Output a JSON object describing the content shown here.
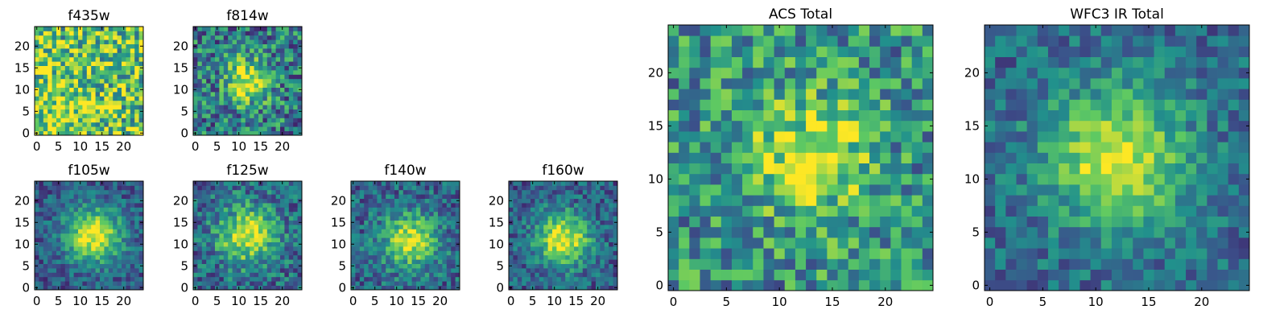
{
  "colormap": [
    "#440154",
    "#3b528b",
    "#21918c",
    "#5ec962",
    "#fde725"
  ],
  "chart_data": [
    {
      "type": "heatmap",
      "title": "f435w",
      "grid_size": 25,
      "xlim": [
        0,
        24
      ],
      "ylim": [
        0,
        24
      ],
      "xticks": [
        0,
        5,
        10,
        15,
        20
      ],
      "yticks": [
        0,
        5,
        10,
        15,
        20
      ],
      "intensity": {
        "peak_x": 6,
        "peak_y": 5,
        "peak": 0.15,
        "sigma": 5,
        "base": 0.72,
        "noise": 0.38
      }
    },
    {
      "type": "heatmap",
      "title": "f814w",
      "grid_size": 25,
      "xlim": [
        0,
        24
      ],
      "ylim": [
        0,
        24
      ],
      "xticks": [
        0,
        5,
        10,
        15,
        20
      ],
      "yticks": [
        0,
        5,
        10,
        15,
        20
      ],
      "intensity": {
        "peak_x": 12,
        "peak_y": 12,
        "peak": 0.55,
        "sigma": 3.5,
        "base": 0.42,
        "noise": 0.32
      }
    },
    {
      "type": "heatmap",
      "title": "f105w",
      "grid_size": 25,
      "xlim": [
        0,
        24
      ],
      "ylim": [
        0,
        24
      ],
      "xticks": [
        0,
        5,
        10,
        15,
        20
      ],
      "yticks": [
        0,
        5,
        10,
        15,
        20
      ],
      "intensity": {
        "peak_x": 13,
        "peak_y": 12,
        "peak": 0.7,
        "sigma": 4.5,
        "base": 0.28,
        "noise": 0.18
      }
    },
    {
      "type": "heatmap",
      "title": "f125w",
      "grid_size": 25,
      "xlim": [
        0,
        24
      ],
      "ylim": [
        0,
        24
      ],
      "xticks": [
        0,
        5,
        10,
        15,
        20
      ],
      "yticks": [
        0,
        5,
        10,
        15,
        20
      ],
      "intensity": {
        "peak_x": 12,
        "peak_y": 12,
        "peak": 0.6,
        "sigma": 4.8,
        "base": 0.33,
        "noise": 0.24
      }
    },
    {
      "type": "heatmap",
      "title": "f140w",
      "grid_size": 25,
      "xlim": [
        0,
        24
      ],
      "ylim": [
        0,
        24
      ],
      "xticks": [
        0,
        5,
        10,
        15,
        20
      ],
      "yticks": [
        0,
        5,
        10,
        15,
        20
      ],
      "intensity": {
        "peak_x": 13,
        "peak_y": 11,
        "peak": 0.6,
        "sigma": 4.5,
        "base": 0.32,
        "noise": 0.22
      }
    },
    {
      "type": "heatmap",
      "title": "f160w",
      "grid_size": 25,
      "xlim": [
        0,
        24
      ],
      "ylim": [
        0,
        24
      ],
      "xticks": [
        0,
        5,
        10,
        15,
        20
      ],
      "yticks": [
        0,
        5,
        10,
        15,
        20
      ],
      "intensity": {
        "peak_x": 12,
        "peak_y": 11,
        "peak": 0.7,
        "sigma": 4.3,
        "base": 0.3,
        "noise": 0.2
      }
    },
    {
      "type": "heatmap",
      "title": "ACS Total",
      "grid_size": 25,
      "xlim": [
        0,
        24
      ],
      "ylim": [
        0,
        24
      ],
      "xticks": [
        0,
        5,
        10,
        15,
        20
      ],
      "yticks": [
        0,
        5,
        10,
        15,
        20
      ],
      "intensity": {
        "peak_x": 13,
        "peak_y": 12,
        "peak": 0.45,
        "sigma": 4,
        "base": 0.5,
        "noise": 0.3
      }
    },
    {
      "type": "heatmap",
      "title": "WFC3 IR Total",
      "grid_size": 25,
      "xlim": [
        0,
        24
      ],
      "ylim": [
        0,
        24
      ],
      "xticks": [
        0,
        5,
        10,
        15,
        20
      ],
      "yticks": [
        0,
        5,
        10,
        15,
        20
      ],
      "intensity": {
        "peak_x": 12,
        "peak_y": 12,
        "peak": 0.62,
        "sigma": 4.6,
        "base": 0.34,
        "noise": 0.18
      }
    }
  ]
}
